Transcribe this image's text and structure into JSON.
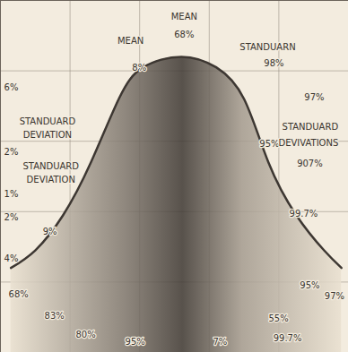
{
  "chart_data": {
    "type": "area",
    "x": [
      3,
      10,
      18,
      26,
      34,
      41,
      52,
      62,
      70,
      77,
      85,
      93,
      98
    ],
    "values": [
      24,
      29,
      39,
      54,
      72,
      81,
      84,
      81,
      72,
      54,
      39,
      29,
      24
    ],
    "color": "#3d3732",
    "xlim": [
      0,
      100
    ],
    "ylim": [
      0,
      100
    ],
    "xticks": [
      0,
      20,
      40,
      60,
      80,
      100
    ],
    "yticks": [
      0,
      20,
      40,
      60,
      80,
      100
    ],
    "grid": true,
    "tick_labels": false,
    "annotations": [
      {
        "text": "MEAN",
        "x": 37.4,
        "y": 88.5
      },
      {
        "text": "MEAN",
        "x": 52.8,
        "y": 95.4
      },
      {
        "text": "68%",
        "x": 52.8,
        "y": 90.3
      },
      {
        "text": "8%",
        "x": 39.9,
        "y": 80.9
      },
      {
        "text": "STANDUARN",
        "x": 76.8,
        "y": 86.8
      },
      {
        "text": "98%",
        "x": 78.6,
        "y": 82.2
      },
      {
        "text": "97%",
        "x": 90.2,
        "y": 72.5
      },
      {
        "text": "95%",
        "x": 77.3,
        "y": 59.3
      },
      {
        "text": "STANDUARD",
        "x": 89.0,
        "y": 64.0
      },
      {
        "text": "DEVIVATIONS",
        "x": 88.5,
        "y": 59.5
      },
      {
        "text": "907%",
        "x": 88.9,
        "y": 53.5
      },
      {
        "text": "99.7%",
        "x": 87.1,
        "y": 39.4
      },
      {
        "text": "STANDUARD",
        "x": 13.5,
        "y": 65.6
      },
      {
        "text": "DEVIATION",
        "x": 13.5,
        "y": 61.8
      },
      {
        "text": "STANDUARD",
        "x": 14.5,
        "y": 52.9
      },
      {
        "text": "DEVIATION",
        "x": 14.5,
        "y": 49.1
      },
      {
        "text": "6%",
        "x": 3.1,
        "y": 75.3
      },
      {
        "text": "2%",
        "x": 3.1,
        "y": 57.0
      },
      {
        "text": "1%",
        "x": 3.1,
        "y": 45.0
      },
      {
        "text": "2%",
        "x": 3.1,
        "y": 38.4
      },
      {
        "text": "9%",
        "x": 14.2,
        "y": 34.4
      },
      {
        "text": "4%",
        "x": 3.1,
        "y": 26.7
      },
      {
        "text": "68%",
        "x": 5.2,
        "y": 16.5
      },
      {
        "text": "83%",
        "x": 15.5,
        "y": 10.4
      },
      {
        "text": "80%",
        "x": 24.5,
        "y": 5.0
      },
      {
        "text": "95%",
        "x": 38.7,
        "y": 3.0
      },
      {
        "text": "7%",
        "x": 63.1,
        "y": 3.1
      },
      {
        "text": "55%",
        "x": 79.9,
        "y": 9.7
      },
      {
        "text": "95%",
        "x": 88.9,
        "y": 19.1
      },
      {
        "text": "97%",
        "x": 96.0,
        "y": 16.0
      },
      {
        "text": "99.7%",
        "x": 82.5,
        "y": 4.0
      }
    ]
  }
}
